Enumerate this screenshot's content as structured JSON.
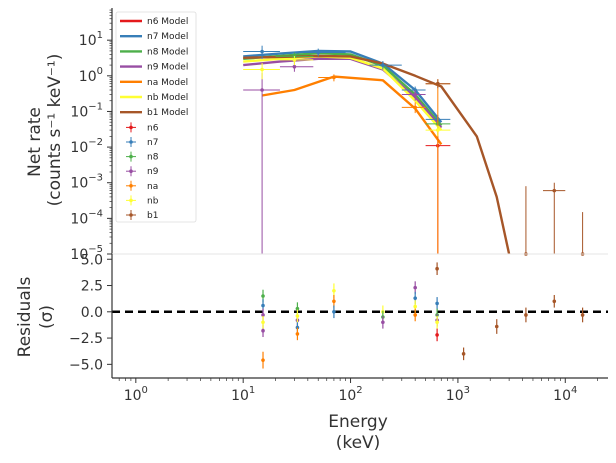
{
  "chart_data": [
    {
      "type": "line",
      "panel": "counts",
      "xscale": "log",
      "yscale": "log",
      "xlim": [
        0.6,
        25000
      ],
      "ylim": [
        1e-05,
        80
      ],
      "ylabel_line1": "Net rate",
      "ylabel_line2": "(counts s⁻¹ keV⁻¹)",
      "yticks": [
        {
          "v": 1e-05,
          "base": "10",
          "exp": "−5"
        },
        {
          "v": 0.0001,
          "base": "10",
          "exp": "−4"
        },
        {
          "v": 0.001,
          "base": "10",
          "exp": "−3"
        },
        {
          "v": 0.01,
          "base": "10",
          "exp": "−2"
        },
        {
          "v": 0.1,
          "base": "10",
          "exp": "−1"
        },
        {
          "v": 1,
          "base": "10",
          "exp": "0"
        },
        {
          "v": 10,
          "base": "10",
          "exp": "1"
        }
      ],
      "legend_position": "upper-left",
      "model_series": [
        {
          "name": "n6 Model",
          "color": "#e41a1c",
          "x": [],
          "y": []
        },
        {
          "name": "n7 Model",
          "color": "#377eb8",
          "x": [
            10,
            22,
            50,
            100,
            200,
            400,
            700
          ],
          "y": [
            3.5,
            4.2,
            5.0,
            4.8,
            2.2,
            0.4,
            0.05
          ]
        },
        {
          "name": "n8 Model",
          "color": "#4daf4a",
          "x": [
            10,
            22,
            50,
            100,
            200,
            400,
            700
          ],
          "y": [
            3.0,
            3.6,
            4.3,
            4.0,
            1.9,
            0.3,
            0.04
          ]
        },
        {
          "name": "n9 Model",
          "color": "#984ea3",
          "x": [
            10,
            22,
            50,
            100,
            200,
            400,
            700
          ],
          "y": [
            2.0,
            2.5,
            3.0,
            3.0,
            1.5,
            0.25,
            0.035
          ]
        },
        {
          "name": "na Model",
          "color": "#ff7f00",
          "x": [
            15,
            30,
            70,
            200,
            400,
            700
          ],
          "y": [
            0.28,
            0.4,
            0.95,
            0.75,
            0.12,
            0.012
          ]
        },
        {
          "name": "nb Model",
          "color": "#ffff33",
          "x": [
            10,
            22,
            50,
            100,
            200,
            400,
            700
          ],
          "y": [
            2.5,
            3.0,
            3.5,
            3.2,
            1.6,
            0.2,
            0.03
          ]
        },
        {
          "name": "b1 Model",
          "color": "#a65628",
          "x": [
            10,
            22,
            50,
            100,
            200,
            400,
            700,
            1500,
            2300,
            3000
          ],
          "y": [
            3.2,
            3.4,
            3.6,
            3.5,
            2.2,
            1.0,
            0.5,
            0.02,
            0.0004,
            1e-05
          ]
        }
      ],
      "data_series": [
        {
          "name": "n6",
          "color": "#e41a1c",
          "points": [
            {
              "x": 650,
              "y": 0.011,
              "xlo": 500,
              "xhi": 850,
              "ylo": 1e-05,
              "yhi": 0.03
            }
          ]
        },
        {
          "name": "n7",
          "color": "#377eb8",
          "points": [
            {
              "x": 15,
              "y": 4.8,
              "xlo": 10,
              "xhi": 22,
              "ylo": 3.0,
              "yhi": 7.0
            },
            {
              "x": 50,
              "y": 4.5,
              "xlo": 30,
              "xhi": 90,
              "ylo": 3.5,
              "yhi": 5.8
            },
            {
              "x": 200,
              "y": 2.0,
              "xlo": 150,
              "xhi": 300,
              "ylo": 1.5,
              "yhi": 2.6
            },
            {
              "x": 400,
              "y": 0.4,
              "xlo": 300,
              "xhi": 500,
              "ylo": 0.3,
              "yhi": 0.5
            },
            {
              "x": 650,
              "y": 0.06,
              "xlo": 500,
              "xhi": 850,
              "ylo": 0.04,
              "yhi": 0.08
            }
          ]
        },
        {
          "name": "n8",
          "color": "#4daf4a",
          "points": [
            {
              "x": 30,
              "y": 3.5,
              "xlo": 20,
              "xhi": 45,
              "ylo": 2.5,
              "yhi": 4.5
            },
            {
              "x": 650,
              "y": 0.045,
              "xlo": 500,
              "xhi": 850,
              "ylo": 0.03,
              "yhi": 0.06
            }
          ]
        },
        {
          "name": "n9",
          "color": "#984ea3",
          "points": [
            {
              "x": 15,
              "y": 0.4,
              "xlo": 10,
              "xhi": 22,
              "ylo": 1e-05,
              "yhi": 1.2
            },
            {
              "x": 30,
              "y": 1.8,
              "xlo": 22,
              "xhi": 45,
              "ylo": 1.3,
              "yhi": 2.5
            },
            {
              "x": 400,
              "y": 0.3,
              "xlo": 300,
              "xhi": 500,
              "ylo": 0.2,
              "yhi": 0.4
            }
          ]
        },
        {
          "name": "na",
          "color": "#ff7f00",
          "points": [
            {
              "x": 70,
              "y": 0.9,
              "xlo": 50,
              "xhi": 100,
              "ylo": 0.7,
              "yhi": 1.1
            },
            {
              "x": 400,
              "y": 0.13,
              "xlo": 300,
              "xhi": 500,
              "ylo": 0.09,
              "yhi": 0.18
            },
            {
              "x": 650,
              "y": 0.6,
              "xlo": 500,
              "xhi": 850,
              "ylo": 1e-05,
              "yhi": 0.8
            }
          ]
        },
        {
          "name": "nb",
          "color": "#ffff33",
          "points": [
            {
              "x": 15,
              "y": 1.5,
              "xlo": 10,
              "xhi": 22,
              "ylo": 0.8,
              "yhi": 2.3
            },
            {
              "x": 30,
              "y": 2.8,
              "xlo": 22,
              "xhi": 45,
              "ylo": 2.0,
              "yhi": 3.6
            },
            {
              "x": 650,
              "y": 0.03,
              "xlo": 500,
              "xhi": 850,
              "ylo": 0.02,
              "yhi": 0.04
            }
          ]
        },
        {
          "name": "b1",
          "color": "#a65628",
          "points": [
            {
              "x": 650,
              "y": 0.6,
              "xlo": 500,
              "xhi": 850,
              "ylo": 0.45,
              "yhi": 0.8
            },
            {
              "x": 4300,
              "y": 1e-05,
              "xlo": 4300,
              "xhi": 4300,
              "ylo": 1e-05,
              "yhi": 0.0008
            },
            {
              "x": 7900,
              "y": 0.0006,
              "xlo": 6200,
              "xhi": 10000,
              "ylo": 1e-05,
              "yhi": 0.001
            },
            {
              "x": 14500,
              "y": 1e-05,
              "xlo": 14500,
              "xhi": 14500,
              "ylo": 1e-05,
              "yhi": 0.00015
            }
          ]
        }
      ]
    },
    {
      "type": "scatter",
      "panel": "residuals",
      "xscale": "log",
      "xlim": [
        0.6,
        25000
      ],
      "ylim": [
        -6.3,
        5.5
      ],
      "ylabel_line1": "Residuals",
      "ylabel_line2": "(σ)",
      "xlabel_line1": "Energy",
      "xlabel_line2": "(keV)",
      "yticks": [
        5.0,
        2.5,
        0.0,
        -2.5,
        -5.0
      ],
      "ytick_labels": [
        "5.0",
        "2.5",
        "0.0",
        "−2.5",
        "−5.0"
      ],
      "xticks": [
        {
          "v": 1,
          "base": "10",
          "exp": "0"
        },
        {
          "v": 10,
          "base": "10",
          "exp": "1"
        },
        {
          "v": 100,
          "base": "10",
          "exp": "2"
        },
        {
          "v": 1000,
          "base": "10",
          "exp": "3"
        },
        {
          "v": 10000,
          "base": "10",
          "exp": "4"
        }
      ],
      "zero_line": true,
      "points": [
        {
          "x": 15.3,
          "y": 1.5,
          "err": 0.6,
          "color": "#4daf4a"
        },
        {
          "x": 15.3,
          "y": 0.6,
          "err": 0.6,
          "color": "#377eb8"
        },
        {
          "x": 15.3,
          "y": -0.3,
          "err": 0.6,
          "color": "#984ea3"
        },
        {
          "x": 15.3,
          "y": -1.8,
          "err": 0.6,
          "color": "#984ea3"
        },
        {
          "x": 15.3,
          "y": -4.6,
          "err": 0.8,
          "color": "#ff7f00"
        },
        {
          "x": 15.3,
          "y": -1.0,
          "err": 0.6,
          "color": "#ffff33"
        },
        {
          "x": 32,
          "y": 0.3,
          "err": 0.6,
          "color": "#4daf4a"
        },
        {
          "x": 32,
          "y": -0.8,
          "err": 0.6,
          "color": "#984ea3"
        },
        {
          "x": 32,
          "y": -1.5,
          "err": 0.6,
          "color": "#377eb8"
        },
        {
          "x": 32,
          "y": -2.1,
          "err": 0.6,
          "color": "#ff7f00"
        },
        {
          "x": 32,
          "y": -0.4,
          "err": 0.6,
          "color": "#ffff33"
        },
        {
          "x": 70,
          "y": 2.0,
          "err": 0.7,
          "color": "#ffff33"
        },
        {
          "x": 70,
          "y": 1.0,
          "err": 0.6,
          "color": "#ff7f00"
        },
        {
          "x": 70,
          "y": 0.0,
          "err": 0.6,
          "color": "#377eb8"
        },
        {
          "x": 200,
          "y": 0.0,
          "err": 0.6,
          "color": "#ffff33"
        },
        {
          "x": 200,
          "y": -0.5,
          "err": 0.6,
          "color": "#4daf4a"
        },
        {
          "x": 200,
          "y": -1.0,
          "err": 0.6,
          "color": "#984ea3"
        },
        {
          "x": 400,
          "y": 2.3,
          "err": 0.6,
          "color": "#984ea3"
        },
        {
          "x": 400,
          "y": 1.3,
          "err": 0.6,
          "color": "#377eb8"
        },
        {
          "x": 400,
          "y": 0.5,
          "err": 0.6,
          "color": "#ffff33"
        },
        {
          "x": 400,
          "y": -0.3,
          "err": 0.6,
          "color": "#ff7f00"
        },
        {
          "x": 640,
          "y": 4.1,
          "err": 0.6,
          "color": "#a65628"
        },
        {
          "x": 640,
          "y": 0.8,
          "err": 0.6,
          "color": "#377eb8"
        },
        {
          "x": 640,
          "y": -0.3,
          "err": 0.6,
          "color": "#4daf4a"
        },
        {
          "x": 640,
          "y": -0.8,
          "err": 0.6,
          "color": "#984ea3"
        },
        {
          "x": 640,
          "y": -1.0,
          "err": 0.6,
          "color": "#ffff33"
        },
        {
          "x": 640,
          "y": -2.2,
          "err": 0.6,
          "color": "#e41a1c"
        },
        {
          "x": 1130,
          "y": -4.0,
          "err": 0.6,
          "color": "#a65628"
        },
        {
          "x": 2300,
          "y": -1.4,
          "err": 0.7,
          "color": "#a65628"
        },
        {
          "x": 4300,
          "y": -0.3,
          "err": 0.7,
          "color": "#a65628"
        },
        {
          "x": 7900,
          "y": 1.0,
          "err": 0.6,
          "color": "#a65628"
        },
        {
          "x": 14500,
          "y": -0.3,
          "err": 0.7,
          "color": "#a65628"
        }
      ]
    }
  ]
}
